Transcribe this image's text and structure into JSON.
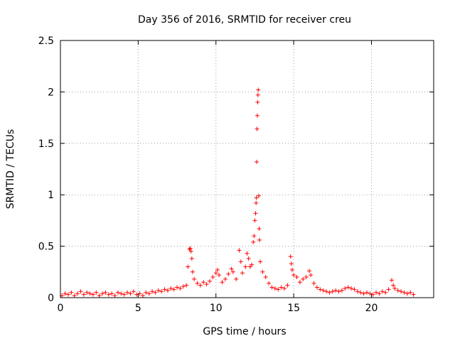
{
  "chart_data": {
    "type": "scatter",
    "title": "Day 356 of 2016, SRMTID for receiver creu",
    "xlabel": "GPS time / hours",
    "ylabel": "SRMTID / TECUs",
    "xlim": [
      0,
      24
    ],
    "ylim": [
      0,
      2.5
    ],
    "xticks": [
      0,
      5,
      10,
      15,
      20
    ],
    "yticks": [
      0,
      0.5,
      1,
      1.5,
      2,
      2.5
    ],
    "ytick_labels": [
      "0",
      "0.5",
      "1",
      "1.5",
      "2",
      "2.5"
    ],
    "grid": true,
    "marker": "+",
    "colors": {
      "series": "#ff0000",
      "grid": "#a0a0a0",
      "axis": "#000000"
    },
    "series": [
      {
        "points": [
          [
            0.1,
            0.02
          ],
          [
            0.3,
            0.04
          ],
          [
            0.5,
            0.03
          ],
          [
            0.7,
            0.05
          ],
          [
            0.9,
            0.02
          ],
          [
            1.1,
            0.04
          ],
          [
            1.3,
            0.06
          ],
          [
            1.5,
            0.03
          ],
          [
            1.7,
            0.05
          ],
          [
            1.9,
            0.04
          ],
          [
            2.1,
            0.03
          ],
          [
            2.3,
            0.05
          ],
          [
            2.5,
            0.02
          ],
          [
            2.7,
            0.04
          ],
          [
            2.9,
            0.05
          ],
          [
            3.1,
            0.03
          ],
          [
            3.3,
            0.04
          ],
          [
            3.5,
            0.02
          ],
          [
            3.7,
            0.05
          ],
          [
            3.9,
            0.04
          ],
          [
            4.1,
            0.03
          ],
          [
            4.3,
            0.05
          ],
          [
            4.5,
            0.04
          ],
          [
            4.7,
            0.06
          ],
          [
            4.9,
            0.03
          ],
          [
            5.1,
            0.04
          ],
          [
            5.3,
            0.02
          ],
          [
            5.5,
            0.05
          ],
          [
            5.7,
            0.04
          ],
          [
            5.9,
            0.06
          ],
          [
            6.1,
            0.05
          ],
          [
            6.3,
            0.07
          ],
          [
            6.5,
            0.06
          ],
          [
            6.7,
            0.08
          ],
          [
            6.9,
            0.07
          ],
          [
            7.1,
            0.09
          ],
          [
            7.3,
            0.08
          ],
          [
            7.5,
            0.1
          ],
          [
            7.7,
            0.09
          ],
          [
            7.9,
            0.11
          ],
          [
            8.1,
            0.12
          ],
          [
            8.2,
            0.3
          ],
          [
            8.3,
            0.47
          ],
          [
            8.35,
            0.48
          ],
          [
            8.4,
            0.45
          ],
          [
            8.45,
            0.38
          ],
          [
            8.5,
            0.25
          ],
          [
            8.6,
            0.18
          ],
          [
            8.8,
            0.14
          ],
          [
            9.0,
            0.12
          ],
          [
            9.2,
            0.15
          ],
          [
            9.4,
            0.13
          ],
          [
            9.6,
            0.16
          ],
          [
            9.8,
            0.2
          ],
          [
            10.0,
            0.24
          ],
          [
            10.1,
            0.27
          ],
          [
            10.2,
            0.22
          ],
          [
            10.4,
            0.15
          ],
          [
            10.6,
            0.18
          ],
          [
            10.8,
            0.23
          ],
          [
            11.0,
            0.28
          ],
          [
            11.1,
            0.25
          ],
          [
            11.3,
            0.18
          ],
          [
            11.5,
            0.46
          ],
          [
            11.6,
            0.35
          ],
          [
            11.7,
            0.24
          ],
          [
            11.9,
            0.3
          ],
          [
            12.0,
            0.43
          ],
          [
            12.1,
            0.38
          ],
          [
            12.2,
            0.3
          ],
          [
            12.3,
            0.32
          ],
          [
            12.4,
            0.54
          ],
          [
            12.45,
            0.6
          ],
          [
            12.5,
            0.75
          ],
          [
            12.55,
            0.82
          ],
          [
            12.58,
            0.92
          ],
          [
            12.6,
            0.97
          ],
          [
            12.62,
            1.32
          ],
          [
            12.64,
            1.64
          ],
          [
            12.66,
            1.77
          ],
          [
            12.68,
            1.9
          ],
          [
            12.7,
            1.97
          ],
          [
            12.72,
            2.02
          ],
          [
            12.75,
            0.99
          ],
          [
            12.78,
            0.67
          ],
          [
            12.8,
            0.56
          ],
          [
            12.85,
            0.35
          ],
          [
            13.0,
            0.25
          ],
          [
            13.2,
            0.2
          ],
          [
            13.4,
            0.14
          ],
          [
            13.6,
            0.1
          ],
          [
            13.8,
            0.09
          ],
          [
            14.0,
            0.08
          ],
          [
            14.2,
            0.1
          ],
          [
            14.4,
            0.09
          ],
          [
            14.6,
            0.12
          ],
          [
            14.8,
            0.4
          ],
          [
            14.85,
            0.33
          ],
          [
            14.9,
            0.27
          ],
          [
            15.0,
            0.22
          ],
          [
            15.2,
            0.2
          ],
          [
            15.4,
            0.15
          ],
          [
            15.6,
            0.18
          ],
          [
            15.8,
            0.2
          ],
          [
            16.0,
            0.26
          ],
          [
            16.1,
            0.22
          ],
          [
            16.3,
            0.14
          ],
          [
            16.5,
            0.1
          ],
          [
            16.7,
            0.08
          ],
          [
            16.9,
            0.07
          ],
          [
            17.1,
            0.06
          ],
          [
            17.3,
            0.05
          ],
          [
            17.5,
            0.06
          ],
          [
            17.7,
            0.07
          ],
          [
            17.9,
            0.06
          ],
          [
            18.1,
            0.07
          ],
          [
            18.3,
            0.09
          ],
          [
            18.5,
            0.1
          ],
          [
            18.7,
            0.09
          ],
          [
            18.9,
            0.08
          ],
          [
            19.1,
            0.06
          ],
          [
            19.3,
            0.05
          ],
          [
            19.5,
            0.04
          ],
          [
            19.7,
            0.05
          ],
          [
            19.9,
            0.04
          ],
          [
            20.1,
            0.03
          ],
          [
            20.3,
            0.05
          ],
          [
            20.5,
            0.04
          ],
          [
            20.7,
            0.06
          ],
          [
            20.9,
            0.05
          ],
          [
            21.1,
            0.08
          ],
          [
            21.3,
            0.17
          ],
          [
            21.4,
            0.12
          ],
          [
            21.5,
            0.09
          ],
          [
            21.7,
            0.07
          ],
          [
            21.9,
            0.06
          ],
          [
            22.1,
            0.05
          ],
          [
            22.3,
            0.04
          ],
          [
            22.5,
            0.05
          ],
          [
            22.7,
            0.03
          ]
        ]
      }
    ]
  }
}
